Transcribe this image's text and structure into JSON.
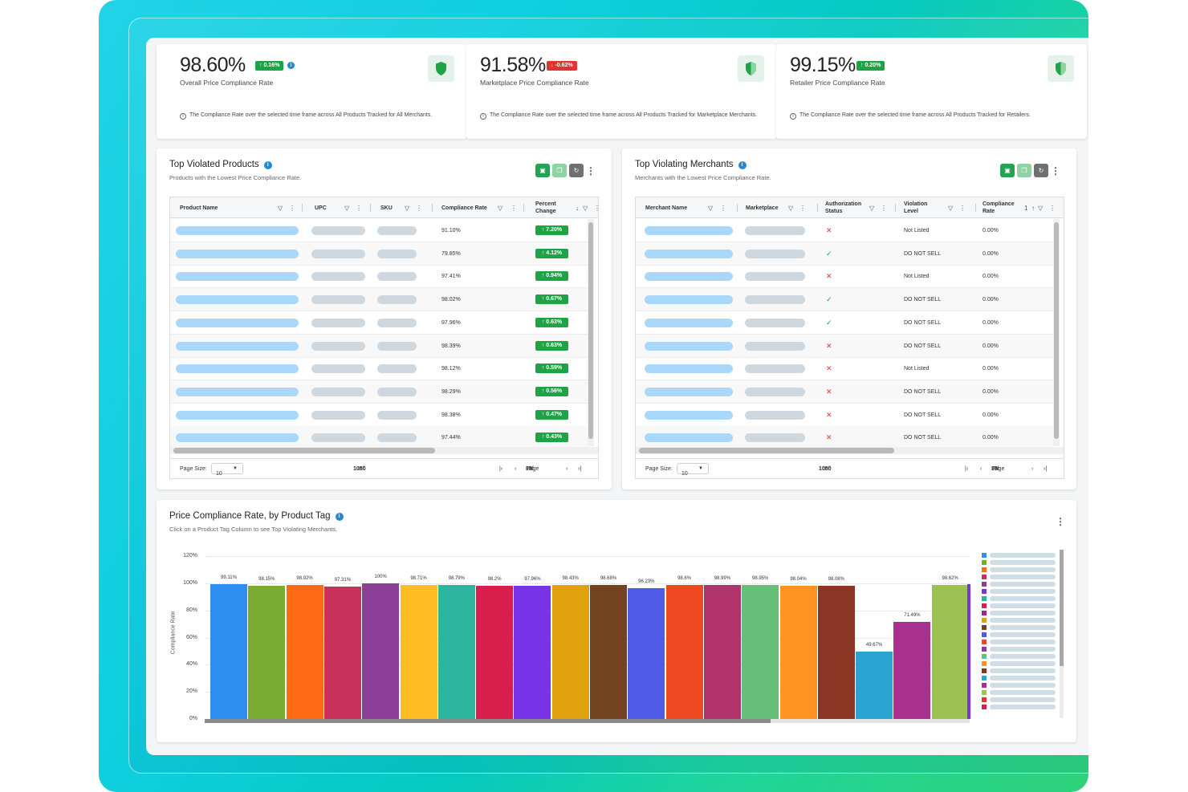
{
  "kpis": [
    {
      "value": "98.60%",
      "change": "0.16%",
      "direction": "up",
      "label": "Overall Price Compliance Rate",
      "note": "The Compliance Rate over the selected time frame across All Products Tracked for All Merchants."
    },
    {
      "value": "91.58%",
      "change": "-0.62%",
      "direction": "down",
      "label": "Marketplace Price Compliance Rate",
      "note": "The Compliance Rate over the selected time frame across All Products Tracked for Marketplace Merchants."
    },
    {
      "value": "99.15%",
      "change": "0.20%",
      "direction": "up",
      "label": "Retailer Price Compliance Rate",
      "note": "The Compliance Rate over the selected time frame across All Products Tracked for Retailers."
    }
  ],
  "products_panel": {
    "title": "Top Violated Products",
    "subtitle": "Products with the Lowest Price Compliance Rate.",
    "columns": [
      "Product Name",
      "UPC",
      "SKU",
      "Compliance Rate",
      "Percent Change"
    ],
    "rows": [
      {
        "compliance": "91.10%",
        "change": "7.20%"
      },
      {
        "compliance": "79.85%",
        "change": "4.12%"
      },
      {
        "compliance": "97.41%",
        "change": "0.94%"
      },
      {
        "compliance": "98.02%",
        "change": "0.67%"
      },
      {
        "compliance": "97.96%",
        "change": "0.63%"
      },
      {
        "compliance": "98.39%",
        "change": "0.63%"
      },
      {
        "compliance": "98.12%",
        "change": "0.59%"
      },
      {
        "compliance": "98.29%",
        "change": "0.56%"
      },
      {
        "compliance": "98.38%",
        "change": "0.47%"
      },
      {
        "compliance": "97.44%",
        "change": "0.43%"
      }
    ],
    "page_size_label": "Page Size:",
    "page_size": "10",
    "range_prefix": "1 to ",
    "range_end": "10",
    "range_of": " of ",
    "range_total": "50",
    "page_prefix": "Page ",
    "page_current": "1",
    "page_of": " of ",
    "page_total": "5"
  },
  "merchants_panel": {
    "title": "Top Violating Merchants",
    "subtitle": "Merchants with the Lowest Price Compliance Rate.",
    "columns": [
      "Merchant Name",
      "Marketplace",
      "Authorization Status",
      "Violation Level",
      "Compliance Rate"
    ],
    "sort_index": "1",
    "rows": [
      {
        "auth": "x",
        "level": "Not Listed",
        "rate": "0.00%"
      },
      {
        "auth": "check",
        "level": "DO NOT SELL",
        "rate": "0.00%"
      },
      {
        "auth": "x",
        "level": "Not Listed",
        "rate": "0.00%"
      },
      {
        "auth": "check",
        "level": "DO NOT SELL",
        "rate": "0.00%"
      },
      {
        "auth": "check",
        "level": "DO NOT SELL",
        "rate": "0.00%"
      },
      {
        "auth": "x",
        "level": "DO NOT SELL",
        "rate": "0.00%"
      },
      {
        "auth": "x",
        "level": "Not Listed",
        "rate": "0.00%"
      },
      {
        "auth": "x",
        "level": "DO NOT SELL",
        "rate": "0.00%"
      },
      {
        "auth": "x",
        "level": "DO NOT SELL",
        "rate": "0.00%"
      },
      {
        "auth": "x",
        "level": "DO NOT SELL",
        "rate": "0.00%"
      }
    ],
    "page_size_label": "Page Size:",
    "page_size": "10",
    "range_prefix": "1 to ",
    "range_end": "10",
    "range_of": " of ",
    "range_total": "50",
    "page_prefix": "Page ",
    "page_current": "1",
    "page_of": " of ",
    "page_total": "5"
  },
  "chart_panel": {
    "title": "Price Compliance Rate, by Product Tag",
    "subtitle": "Click on a Product Tag Column to see Top Violating Merchants."
  },
  "chart_data": {
    "type": "bar",
    "ylabel": "Compliance Rate",
    "ylim": [
      0,
      120
    ],
    "yticks": [
      "0%",
      "20%",
      "40%",
      "60%",
      "80%",
      "100%",
      "120%"
    ],
    "grid": true,
    "legend": "right",
    "values": [
      99.11,
      98.15,
      98.92,
      97.31,
      100,
      98.71,
      98.79,
      98.2,
      97.96,
      98.43,
      98.68,
      96.23,
      98.6,
      98.99,
      98.95,
      98.04,
      98.08,
      49.67,
      71.49,
      98.62
    ],
    "labels": [
      "99.11%",
      "98.15%",
      "98.92%",
      "97.31%",
      "100%",
      "98.71%",
      "98.79%",
      "98.2%",
      "97.96%",
      "98.43%",
      "98.68%",
      "96.23%",
      "98.6%",
      "98.99%",
      "98.95%",
      "98.04%",
      "98.08%",
      "49.67%",
      "71.49%",
      "98.62%"
    ],
    "colors": [
      "#2e8ff0",
      "#7aab32",
      "#ff6a13",
      "#c8325a",
      "#8c3f97",
      "#fdbd23",
      "#2bb5a0",
      "#d81e4c",
      "#7a34e8",
      "#e0a10e",
      "#73421e",
      "#4f5be6",
      "#ee4a21",
      "#b0336c",
      "#66be78",
      "#ff9420",
      "#8b3624",
      "#2aa5d2",
      "#a8308e",
      "#9ec154"
    ],
    "legend_colors": [
      "#2e8ff0",
      "#7aab32",
      "#ff6a13",
      "#c8325a",
      "#8c3f97",
      "#7a34e8",
      "#2bb5a0",
      "#d81e4c",
      "#9c2a8a",
      "#e0a10e",
      "#73421e",
      "#4f5be6",
      "#ee4a21",
      "#8c3f97",
      "#66be78",
      "#ff9420",
      "#8b3624",
      "#2aa5d2",
      "#a8308e",
      "#9ec154",
      "#e0342f",
      "#d81e4c"
    ]
  }
}
